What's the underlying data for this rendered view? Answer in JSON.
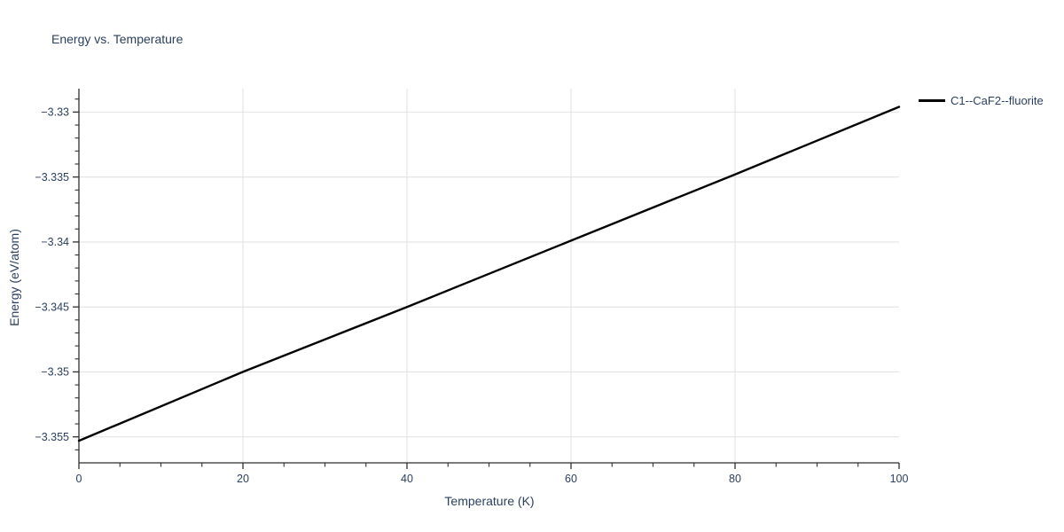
{
  "chart": {
    "title": "Energy vs. Temperature",
    "xlabel": "Temperature (K)",
    "ylabel": "Energy (eV/atom)"
  },
  "colors": {
    "text": "#2a3f5f",
    "grid": "#e3e3e3",
    "axis": "#2f2f2f",
    "line": "#000000",
    "background": "#ffffff"
  },
  "chart_data": {
    "type": "line",
    "title": "Energy vs. Temperature",
    "xlabel": "Temperature (K)",
    "ylabel": "Energy (eV/atom)",
    "x_range": [
      0,
      100
    ],
    "y_range": [
      -3.357,
      -3.3282
    ],
    "x_ticks": [
      0,
      20,
      40,
      60,
      80,
      100
    ],
    "x_tick_labels": [
      "0",
      "20",
      "40",
      "60",
      "80",
      "100"
    ],
    "x_minor_tick_step": 5,
    "y_ticks": [
      -3.33,
      -3.335,
      -3.34,
      -3.345,
      -3.35,
      -3.355
    ],
    "y_tick_labels": [
      "−3.33",
      "−3.335",
      "−3.34",
      "−3.345",
      "−3.35",
      "−3.355"
    ],
    "y_minor_tick_step": 0.001,
    "x_gridlines": [
      20,
      40,
      60,
      80
    ],
    "grid": true,
    "legend_position": "outside-top-right",
    "series": [
      {
        "name": "C1--CaF2--fluorite",
        "color": "#000000",
        "x": [
          0,
          20,
          40,
          60,
          80,
          100
        ],
        "y": [
          -3.3553,
          -3.35,
          -3.345,
          -3.3399,
          -3.3348,
          -3.3296
        ]
      }
    ]
  }
}
